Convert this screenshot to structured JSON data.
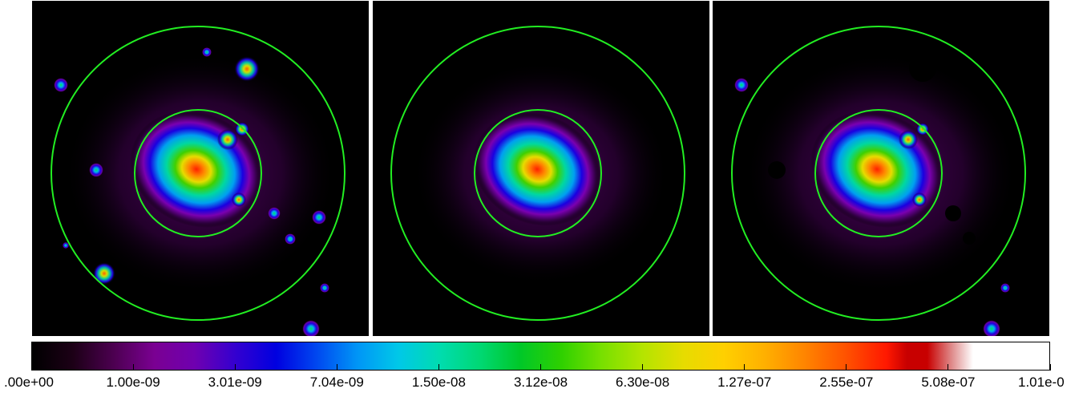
{
  "panels": [
    {
      "name": "panel-left",
      "has_point_sources": true,
      "has_masks": false
    },
    {
      "name": "panel-middle",
      "has_point_sources": false,
      "has_masks": false
    },
    {
      "name": "panel-right",
      "has_point_sources": true,
      "has_masks": true
    }
  ],
  "region_color": "#22ee22",
  "colormap": "rainbow",
  "colorbar": {
    "tick_labels": [
      ".00e+00",
      "1.00e-09",
      "3.01e-09",
      "7.04e-09",
      "1.50e-08",
      "3.12e-08",
      "6.30e-08",
      "1.27e-07",
      "2.55e-07",
      "5.08e-07",
      "1.01e-0"
    ]
  }
}
